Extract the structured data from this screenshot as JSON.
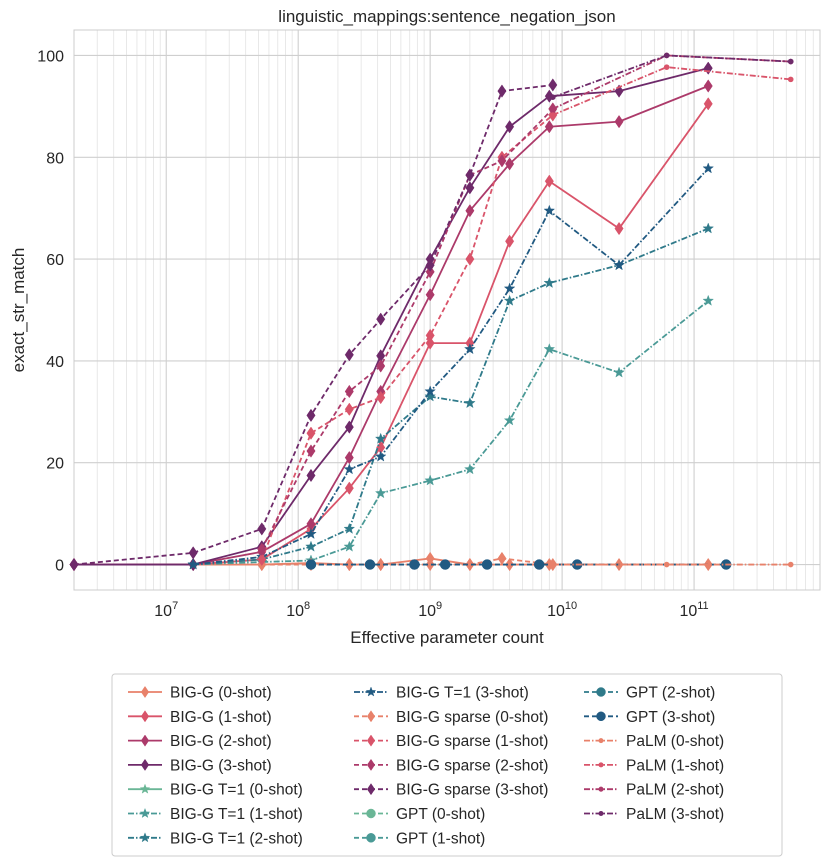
{
  "chart_data": {
    "type": "line",
    "title": "linguistic_mappings:sentence_negation_json",
    "xlabel": "Effective parameter count",
    "ylabel": "exact_str_match",
    "xscale": "log",
    "xlim": [
      2000000,
      900000000000
    ],
    "ylim": [
      -5,
      105
    ],
    "grid": true,
    "x_tick_labels": [
      "10",
      "10",
      "10",
      "10",
      "10",
      "10"
    ],
    "x_tick_exponents": [
      "7",
      "8",
      "9",
      "10",
      "11",
      ""
    ],
    "x_tick_values": [
      10000000,
      100000000,
      1000000000,
      10000000000,
      100000000000
    ],
    "y_tick_values": [
      0,
      20,
      40,
      60,
      80,
      100
    ],
    "y_tick_labels": [
      "0",
      "20",
      "40",
      "60",
      "80",
      "100"
    ],
    "legend_position": "bottom",
    "series": [
      {
        "name": "BIG-G (0-shot)",
        "color": "#e8816a",
        "dash": "",
        "marker": "diamond",
        "x": [
          2000000,
          16000000,
          53000000,
          125000000,
          244000000,
          422000000,
          1000000000,
          2000000000,
          4000000000,
          8000000000,
          27000000000,
          128000000000
        ],
        "y": [
          0,
          0,
          0,
          0.3,
          0,
          0,
          1.2,
          0,
          0,
          0,
          0,
          0
        ]
      },
      {
        "name": "BIG-G (1-shot)",
        "color": "#d9546a",
        "dash": "",
        "marker": "diamond",
        "x": [
          2000000,
          16000000,
          53000000,
          125000000,
          244000000,
          422000000,
          1000000000,
          2000000000,
          4000000000,
          8000000000,
          27000000000,
          128000000000
        ],
        "y": [
          0,
          0,
          1,
          7,
          15,
          23,
          43.5,
          43.5,
          63.5,
          75.3,
          66,
          90.5
        ]
      },
      {
        "name": "BIG-G (2-shot)",
        "color": "#ac3a6a",
        "dash": "",
        "marker": "diamond",
        "x": [
          2000000,
          16000000,
          53000000,
          125000000,
          244000000,
          422000000,
          1000000000,
          2000000000,
          4000000000,
          8000000000,
          27000000000,
          128000000000
        ],
        "y": [
          0,
          0,
          2.5,
          8,
          21,
          34,
          53,
          69.5,
          78.7,
          86,
          87,
          94
        ]
      },
      {
        "name": "BIG-G (3-shot)",
        "color": "#6e2a6a",
        "dash": "",
        "marker": "diamond",
        "x": [
          2000000,
          16000000,
          53000000,
          125000000,
          244000000,
          422000000,
          1000000000,
          2000000000,
          4000000000,
          8000000000,
          27000000000,
          128000000000
        ],
        "y": [
          0,
          0,
          3.5,
          17.5,
          27,
          41,
          60,
          74,
          86,
          92,
          93,
          97.5
        ]
      },
      {
        "name": "BIG-G T=1 (0-shot)",
        "color": "#6ab696",
        "dash": "",
        "marker": "star",
        "x": [],
        "y": []
      },
      {
        "name": "BIG-G T=1 (1-shot)",
        "color": "#4a9a96",
        "dash": "6,2,1.5,2",
        "marker": "star",
        "x": [
          16000000,
          53000000,
          125000000,
          244000000,
          422000000,
          1000000000,
          2000000000,
          4000000000,
          8000000000,
          27000000000,
          128000000000
        ],
        "y": [
          0,
          0.5,
          0.8,
          3.5,
          14,
          16.5,
          18.7,
          28.3,
          42.3,
          37.7,
          51.8
        ]
      },
      {
        "name": "BIG-G T=1 (2-shot)",
        "color": "#2f7a8a",
        "dash": "6,2,1.5,2",
        "marker": "star",
        "x": [
          16000000,
          53000000,
          125000000,
          244000000,
          422000000,
          1000000000,
          2000000000,
          4000000000,
          8000000000,
          27000000000,
          128000000000
        ],
        "y": [
          0,
          1,
          3.5,
          7,
          24.7,
          33,
          31.7,
          51.8,
          55.3,
          58.8,
          66
        ]
      },
      {
        "name": "BIG-G T=1 (3-shot)",
        "color": "#215a82",
        "dash": "6,2,1.5,2",
        "marker": "star",
        "x": [
          16000000,
          53000000,
          125000000,
          244000000,
          422000000,
          1000000000,
          2000000000,
          4000000000,
          8000000000,
          27000000000,
          128000000000
        ],
        "y": [
          0,
          1.5,
          6,
          18.7,
          21.2,
          34,
          42.3,
          54.2,
          69.5,
          58.8,
          77.8
        ]
      },
      {
        "name": "BIG-G sparse (0-shot)",
        "color": "#e8816a",
        "dash": "5,3",
        "marker": "diamond",
        "x": [
          53000000,
          125000000,
          244000000,
          422000000,
          1000000000,
          2000000000,
          3500000000,
          8500000000
        ],
        "y": [
          0,
          0,
          0,
          0,
          0,
          0,
          1.2,
          0
        ]
      },
      {
        "name": "BIG-G sparse (1-shot)",
        "color": "#d9546a",
        "dash": "5,3",
        "marker": "diamond",
        "x": [
          53000000,
          125000000,
          244000000,
          422000000,
          1000000000,
          2000000000,
          3500000000,
          8500000000
        ],
        "y": [
          1,
          25.8,
          30.5,
          32.8,
          45,
          60,
          80,
          88.3
        ]
      },
      {
        "name": "BIG-G sparse (2-shot)",
        "color": "#ac3a6a",
        "dash": "5,3",
        "marker": "diamond",
        "x": [
          53000000,
          125000000,
          244000000,
          422000000,
          1000000000,
          2000000000,
          3500000000,
          8500000000
        ],
        "y": [
          3,
          22.3,
          34,
          39,
          57.5,
          76.5,
          79.3,
          89.5
        ]
      },
      {
        "name": "BIG-G sparse (3-shot)",
        "color": "#6e2a6a",
        "dash": "5,3",
        "marker": "diamond",
        "x": [
          2000000,
          16000000,
          53000000,
          125000000,
          244000000,
          422000000,
          1000000000,
          2000000000,
          3500000000,
          8500000000
        ],
        "y": [
          0,
          2.3,
          7,
          29.3,
          41.2,
          48.2,
          58.8,
          76.5,
          93,
          94.2
        ]
      },
      {
        "name": "GPT (0-shot)",
        "color": "#6ab696",
        "dash": "5,3",
        "marker": "circle",
        "x": [],
        "y": []
      },
      {
        "name": "GPT (1-shot)",
        "color": "#4a9a96",
        "dash": "5,3",
        "marker": "circle",
        "x": [],
        "y": []
      },
      {
        "name": "GPT (2-shot)",
        "color": "#2f7a8a",
        "dash": "5,3",
        "marker": "circle",
        "x": [],
        "y": []
      },
      {
        "name": "GPT (3-shot)",
        "color": "#215a82",
        "dash": "5,3",
        "marker": "circle",
        "x": [
          125000000,
          350000000,
          760000000,
          1300000000,
          2700000000,
          6700000000,
          13000000000,
          175000000000
        ],
        "y": [
          0,
          0,
          0,
          0,
          0,
          0,
          0,
          0
        ]
      },
      {
        "name": "PaLM (0-shot)",
        "color": "#e8816a",
        "dash": "6,2,1.5,2",
        "marker": "dot",
        "x": [
          8500000000,
          62000000000,
          540000000000
        ],
        "y": [
          0,
          0,
          0
        ]
      },
      {
        "name": "PaLM (1-shot)",
        "color": "#d9546a",
        "dash": "6,2,1.5,2",
        "marker": "dot",
        "x": [
          8500000000,
          62000000000,
          540000000000
        ],
        "y": [
          88.3,
          97.7,
          95.3
        ]
      },
      {
        "name": "PaLM (2-shot)",
        "color": "#ac3a6a",
        "dash": "6,2,1.5,2",
        "marker": "dot",
        "x": [
          8500000000,
          62000000000,
          540000000000
        ],
        "y": [
          89.5,
          100,
          98.8
        ]
      },
      {
        "name": "PaLM (3-shot)",
        "color": "#6e2a6a",
        "dash": "6,2,1.5,2",
        "marker": "dot",
        "x": [
          8500000000,
          62000000000,
          540000000000
        ],
        "y": [
          91.8,
          100,
          98.8
        ]
      }
    ]
  }
}
